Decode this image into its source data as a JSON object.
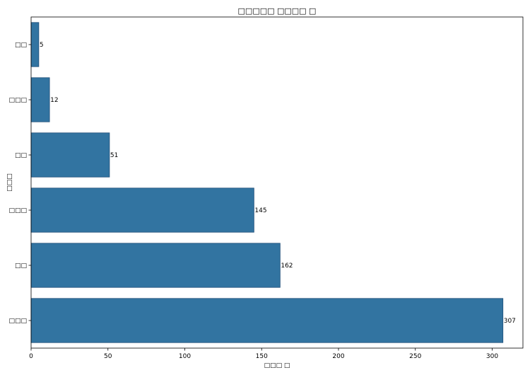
{
  "chart_data": {
    "type": "bar",
    "orientation": "horizontal",
    "title": "□□□□□ □□□□ □",
    "xlabel": "□□□ □",
    "ylabel": "□□□",
    "categories": [
      "□□□",
      "□□",
      "□□□",
      "□□",
      "□□□",
      "□□"
    ],
    "values": [
      307,
      162,
      145,
      51,
      12,
      5
    ],
    "xlim": [
      0,
      320
    ],
    "xticks": [
      0,
      50,
      100,
      150,
      200,
      250,
      300
    ],
    "bar_color": "#3274a1",
    "bar_edge_color": "#1f4e79",
    "grid": false,
    "legend": "none"
  }
}
